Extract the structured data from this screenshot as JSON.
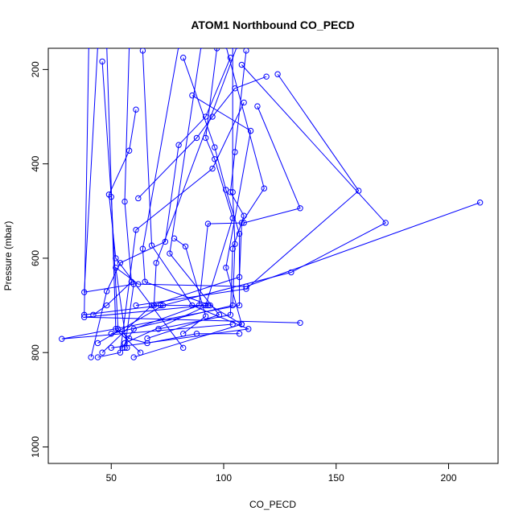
{
  "chart_data": {
    "type": "line",
    "title": "ATOM1 Northbound CO_PECD",
    "xlabel": "CO_PECD",
    "ylabel": "Pressure (mbar)",
    "x_ticks": [
      50,
      100,
      150,
      200
    ],
    "y_ticks": [
      200,
      400,
      600,
      800,
      1000
    ],
    "xlim": [
      22,
      222
    ],
    "ylim": [
      1035,
      155
    ],
    "y_reversed": true,
    "grid": false,
    "legend": "none",
    "series_color": "#0000ff",
    "marker": "open-circle",
    "series": [
      {
        "points": [
          [
            46,
            183
          ],
          [
            50,
            470
          ],
          [
            53,
            750
          ],
          [
            58,
            770
          ],
          [
            66,
            780
          ],
          [
            88,
            760
          ],
          [
            107,
            760
          ]
        ]
      },
      {
        "points": [
          [
            124,
            210
          ],
          [
            160,
            457
          ],
          [
            110,
            665
          ],
          [
            61,
            700
          ]
        ]
      },
      {
        "points": [
          [
            108,
            190
          ],
          [
            172,
            525
          ],
          [
            130,
            630
          ],
          [
            73,
            700
          ],
          [
            44,
            780
          ]
        ]
      },
      {
        "points": [
          [
            214,
            482
          ],
          [
            110,
            660
          ],
          [
            62,
            655
          ],
          [
            52,
            620
          ],
          [
            57,
            790
          ]
        ]
      },
      {
        "points": [
          [
            119,
            215
          ],
          [
            105,
            240
          ],
          [
            95,
            300
          ],
          [
            88,
            345
          ],
          [
            62,
            473
          ]
        ]
      },
      {
        "points": [
          [
            115,
            278
          ],
          [
            134,
            494
          ],
          [
            109,
            525
          ],
          [
            93,
            527
          ],
          [
            89,
            700
          ],
          [
            60,
            750
          ],
          [
            55,
            790
          ]
        ]
      },
      {
        "points": [
          [
            101,
            150
          ],
          [
            118,
            452
          ],
          [
            108,
            525
          ],
          [
            107,
            640
          ],
          [
            68,
            700
          ],
          [
            46,
            800
          ]
        ]
      },
      {
        "points": [
          [
            48,
            150
          ],
          [
            52,
            750
          ],
          [
            63,
            800
          ]
        ]
      },
      {
        "points": [
          [
            61,
            285
          ],
          [
            58,
            372
          ],
          [
            49,
            465
          ],
          [
            52,
            600
          ],
          [
            82,
            790
          ]
        ]
      },
      {
        "points": [
          [
            104,
            150
          ],
          [
            104,
            460
          ],
          [
            105,
            570
          ],
          [
            104,
            700
          ],
          [
            50,
            760
          ]
        ]
      },
      {
        "points": [
          [
            44,
            150
          ],
          [
            38,
            672
          ],
          [
            60,
            655
          ],
          [
            56,
            790
          ]
        ]
      },
      {
        "points": [
          [
            97,
            155
          ],
          [
            92,
            345
          ],
          [
            96,
            390
          ],
          [
            104,
            515
          ],
          [
            92,
            700
          ],
          [
            38,
            725
          ],
          [
            134,
            737
          ]
        ]
      },
      {
        "points": [
          [
            82,
            175
          ],
          [
            96,
            365
          ],
          [
            101,
            455
          ],
          [
            107,
            548
          ],
          [
            107,
            700
          ],
          [
            28,
            771
          ],
          [
            104,
            740
          ]
        ]
      },
      {
        "points": [
          [
            110,
            160
          ],
          [
            105,
            375
          ],
          [
            103,
            460
          ],
          [
            109,
            510
          ],
          [
            104,
            580
          ],
          [
            103,
            720
          ],
          [
            71,
            750
          ]
        ]
      },
      {
        "points": [
          [
            86,
            255
          ],
          [
            112,
            330
          ],
          [
            101,
            620
          ],
          [
            108,
            740
          ],
          [
            60,
            810
          ]
        ]
      },
      {
        "points": [
          [
            103,
            175
          ],
          [
            92,
            300
          ],
          [
            80,
            360
          ],
          [
            74,
            565
          ],
          [
            54,
            610
          ],
          [
            48,
            670
          ],
          [
            41,
            810
          ]
        ]
      },
      {
        "points": [
          [
            109,
            270
          ],
          [
            95,
            410
          ],
          [
            61,
            540
          ],
          [
            54,
            800
          ],
          [
            44,
            810
          ]
        ]
      },
      {
        "points": [
          [
            58,
            150
          ],
          [
            56,
            480
          ],
          [
            59,
            650
          ],
          [
            48,
            700
          ],
          [
            42,
            720
          ]
        ]
      },
      {
        "points": [
          [
            80,
            150
          ],
          [
            64,
            580
          ],
          [
            65,
            650
          ],
          [
            94,
            700
          ],
          [
            108,
            740
          ]
        ]
      },
      {
        "points": [
          [
            40,
            150
          ],
          [
            38,
            720
          ],
          [
            72,
            700
          ]
        ]
      },
      {
        "points": [
          [
            64,
            160
          ],
          [
            68,
            573
          ],
          [
            86,
            700
          ],
          [
            111,
            750
          ],
          [
            50,
            790
          ]
        ]
      },
      {
        "points": [
          [
            106,
            150
          ],
          [
            70,
            610
          ],
          [
            69,
            700
          ],
          [
            93,
            700
          ],
          [
            56,
            780
          ]
        ]
      },
      {
        "points": [
          [
            90,
            150
          ],
          [
            76,
            590
          ],
          [
            98,
            720
          ],
          [
            66,
            770
          ]
        ]
      },
      {
        "points": [
          [
            78,
            558
          ],
          [
            83,
            575
          ],
          [
            92,
            723
          ],
          [
            82,
            760
          ]
        ]
      }
    ]
  }
}
